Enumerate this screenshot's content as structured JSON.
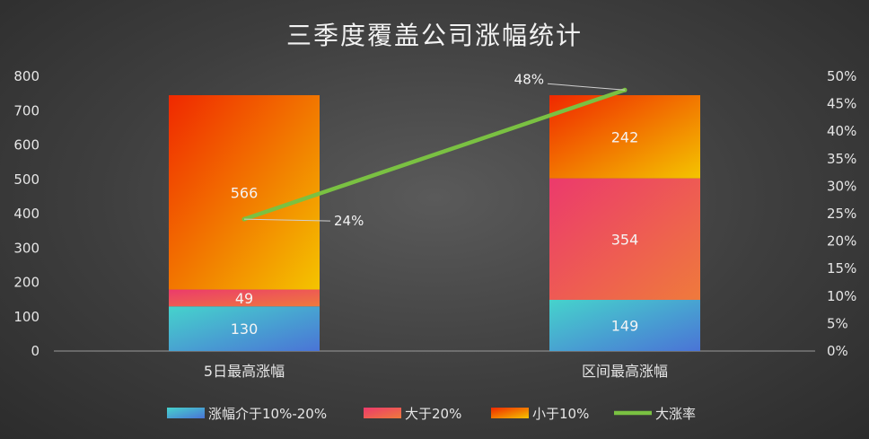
{
  "chart_data": {
    "type": "bar",
    "title": "三季度覆盖公司涨幅统计",
    "categories": [
      "5日最高涨幅",
      "区间最高涨幅"
    ],
    "series": [
      {
        "name": "涨幅介于10%-20%",
        "type": "bar",
        "axis": "left",
        "values": [
          130,
          149
        ],
        "labels": [
          "130",
          "149"
        ],
        "color_from": "#46d3cc",
        "color_to": "#4a74d6"
      },
      {
        "name": "大于20%",
        "type": "bar",
        "axis": "left",
        "values": [
          49,
          354
        ],
        "labels": [
          "49",
          "354"
        ],
        "color_from": "#ec3a6c",
        "color_to": "#ef7a3c"
      },
      {
        "name": "小于10%",
        "type": "bar",
        "axis": "left",
        "values": [
          566,
          242
        ],
        "labels": [
          "566",
          "242"
        ],
        "color_from": "#f02800",
        "color_to": "#f4c400"
      },
      {
        "name": "大涨率",
        "type": "line",
        "axis": "right",
        "values": [
          0.24,
          0.475
        ],
        "labels": [
          "24%",
          "48%"
        ],
        "color": "#7ac142"
      }
    ],
    "y_left": {
      "min": 0,
      "max": 800,
      "ticks": [
        "0",
        "100",
        "200",
        "300",
        "400",
        "500",
        "600",
        "700",
        "800"
      ]
    },
    "y_right": {
      "min": 0,
      "max": 0.5,
      "ticks": [
        "0%",
        "5%",
        "10%",
        "15%",
        "20%",
        "25%",
        "30%",
        "35%",
        "40%",
        "45%",
        "50%"
      ]
    },
    "grid": false,
    "legend_position": "bottom"
  }
}
